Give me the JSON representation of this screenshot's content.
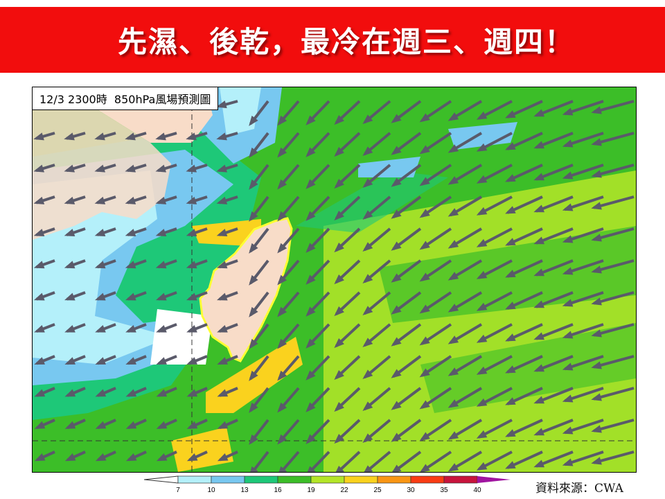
{
  "banner": {
    "title": "先濕、後乾，最冷在週三、週四！",
    "color": "#f20d0d"
  },
  "map": {
    "label": "12/3 2300時  850hPa風場預測圖",
    "outline_color": "#ffff33",
    "arrow_color": "#5a5a6a",
    "prevailing_wind": "northeasterly"
  },
  "colorbar": {
    "ticks": [
      "7",
      "10",
      "13",
      "16",
      "19",
      "22",
      "25",
      "30",
      "35",
      "40"
    ],
    "colors": [
      "#b4f0fa",
      "#78c8f0",
      "#1ec878",
      "#3cbe28",
      "#b4e628",
      "#fad21e",
      "#fa9614",
      "#fa3c14",
      "#c8143c",
      "#a014a0"
    ],
    "under_color": "#ffffff"
  },
  "source": "資料來源：CWA"
}
